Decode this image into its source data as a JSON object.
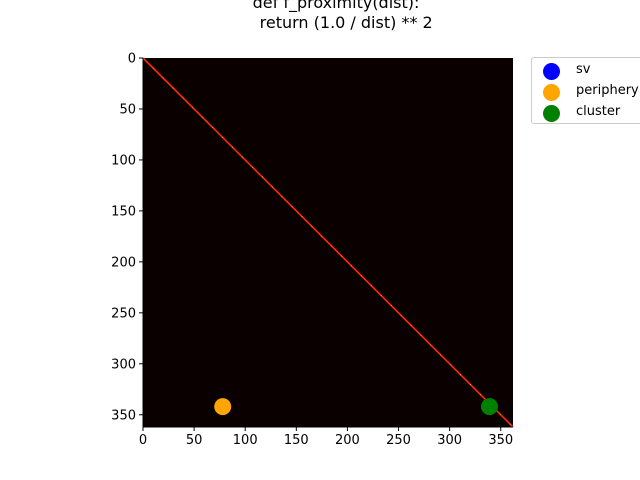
{
  "title": "def f_proximity(dist):\n    return (1.0 / dist) ** 2",
  "colors": {
    "background": "#0a0000",
    "diagonal": "#ff2a00",
    "sv": "#0000ff",
    "periphery": "#ffa500",
    "cluster": "#008000"
  },
  "chart_data": {
    "type": "heatmap",
    "title": "def f_proximity(dist):\n    return (1.0 / dist) ** 2",
    "xlabel": "",
    "ylabel": "",
    "colormap": "hot",
    "xlim": [
      0,
      362
    ],
    "ylim": [
      362,
      0
    ],
    "xticks": [
      0,
      50,
      100,
      150,
      200,
      250,
      300,
      350
    ],
    "yticks": [
      0,
      50,
      100,
      150,
      200,
      250,
      300,
      350
    ],
    "diagonal": {
      "from": 0,
      "to": 362,
      "note": "bright values along main diagonal"
    },
    "series": [
      {
        "name": "sv",
        "color": "#0000ff",
        "points": []
      },
      {
        "name": "periphery",
        "color": "#ffa500",
        "points": [
          [
            78,
            342
          ]
        ]
      },
      {
        "name": "cluster",
        "color": "#008000",
        "points": [
          [
            339,
            342
          ]
        ]
      }
    ],
    "legend": {
      "position": "outside-top-right"
    }
  }
}
